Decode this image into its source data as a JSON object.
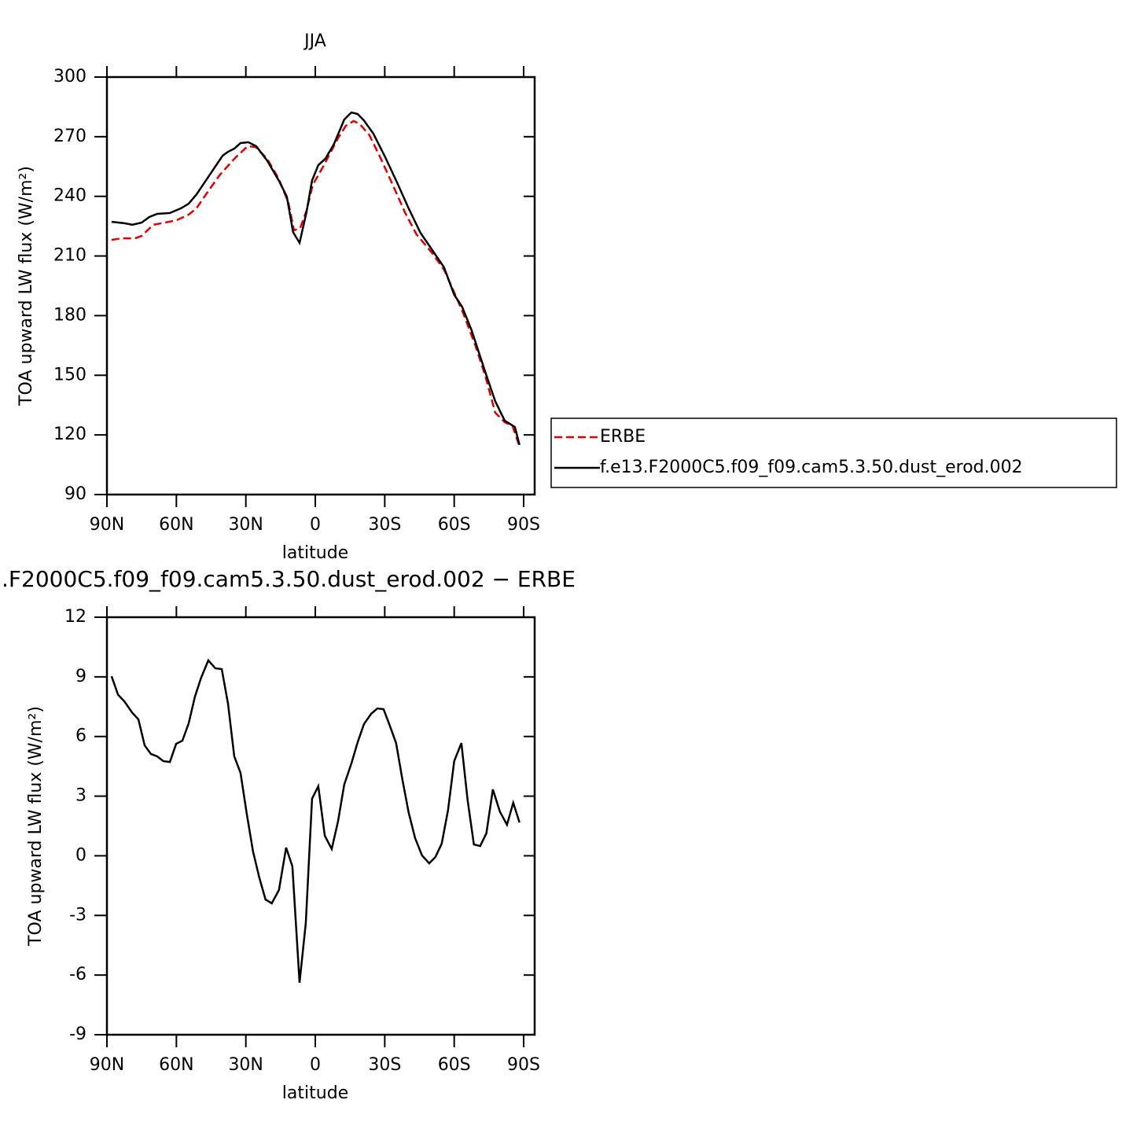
{
  "chart_data": [
    {
      "type": "line",
      "title": "JJA",
      "xlabel": "latitude",
      "ylabel": "TOA upward LW flux (W/m²)",
      "xlim": [
        90,
        -94.75
      ],
      "ylim": [
        90,
        300
      ],
      "xticks": [
        {
          "value": 90,
          "label": "90N"
        },
        {
          "value": 60,
          "label": "60N"
        },
        {
          "value": 30,
          "label": "30N"
        },
        0,
        {
          "value": -30,
          "label": "30S"
        },
        {
          "value": -60,
          "label": "60S"
        },
        {
          "value": -90,
          "label": "90S"
        }
      ],
      "yticks": [
        90,
        120,
        150,
        180,
        210,
        240,
        270,
        300
      ],
      "legend": "outside-right",
      "series": [
        {
          "name": "ERBE",
          "color": "#e00000",
          "linestyle": "dashed",
          "x": [
            88,
            83.6,
            77.8,
            75,
            70,
            64.9,
            59.8,
            54.7,
            51.3,
            46.2,
            41.1,
            34.3,
            29.2,
            25.8,
            20.8,
            15.7,
            11.6,
            9.2,
            6.5,
            3.8,
            1.1,
            -3,
            -6.4,
            -9.8,
            -13.2,
            -16.6,
            -19.3,
            -23.4,
            -28.5,
            -33.6,
            -38.7,
            -43.7,
            -50.5,
            -55.6,
            -60,
            -64.1,
            -69.2,
            -73.6,
            -77.7,
            -81.8,
            -85.2,
            -88.2
          ],
          "values": [
            218.1,
            218.9,
            218.9,
            220.1,
            225.7,
            226.8,
            228,
            230.8,
            234,
            242.7,
            251,
            259.7,
            265.2,
            264.8,
            258.9,
            248.6,
            236.7,
            222.9,
            224.1,
            232.8,
            245.8,
            254.1,
            261.6,
            269.2,
            275.5,
            277.9,
            276.3,
            270.7,
            258.5,
            245.4,
            232,
            220.9,
            211.4,
            203.1,
            191.7,
            180.6,
            164.8,
            149,
            131.2,
            126.4,
            124.4,
            114.2
          ]
        },
        {
          "name": "f.e13.F2000C5.f09_f09.cam5.3.50.dust_erod.002",
          "color": "#000000",
          "linestyle": "solid",
          "x": [
            88,
            82.5,
            79,
            75,
            71.7,
            68.3,
            62.8,
            58,
            54.7,
            51.3,
            46.2,
            40,
            37.7,
            35,
            32.3,
            28.9,
            25.5,
            20.8,
            15.7,
            12.3,
            9.6,
            6.8,
            3.8,
            1.4,
            -1.3,
            -4.4,
            -8.1,
            -12.5,
            -15.6,
            -18.3,
            -21,
            -25.1,
            -30.2,
            -35.3,
            -40.3,
            -45.4,
            -50.5,
            -55.6,
            -60,
            -63.4,
            -67.5,
            -73.6,
            -77.7,
            -81.8,
            -86.2,
            -88.2
          ],
          "values": [
            227.2,
            226.5,
            225.7,
            226.8,
            229.6,
            231.2,
            231.6,
            234,
            236.3,
            241,
            249.8,
            260.5,
            262.4,
            264,
            266.8,
            267.2,
            265.2,
            258,
            247.8,
            239.9,
            222,
            216.6,
            232,
            248,
            255.7,
            259,
            266.4,
            278.6,
            282.2,
            281.4,
            278.2,
            271.5,
            259.7,
            247,
            234,
            221.7,
            213,
            204.3,
            190.5,
            184.5,
            172.7,
            151,
            137,
            127.2,
            124,
            115
          ]
        }
      ]
    },
    {
      "type": "line",
      "title": ".F2000C5.f09_f09.cam5.3.50.dust_erod.002 − ERBE",
      "xlabel": "latitude",
      "ylabel": "TOA upward LW flux (W/m²)",
      "xlim": [
        90,
        -94.75
      ],
      "ylim": [
        -9,
        12
      ],
      "xticks": [
        {
          "value": 90,
          "label": "90N"
        },
        {
          "value": 60,
          "label": "60N"
        },
        {
          "value": 30,
          "label": "30N"
        },
        0,
        {
          "value": -30,
          "label": "30S"
        },
        {
          "value": -60,
          "label": "60S"
        },
        {
          "value": -90,
          "label": "90S"
        }
      ],
      "yticks": [
        -9,
        -6,
        -3,
        0,
        3,
        6,
        9,
        12
      ],
      "color": "#000000",
      "x": [
        88,
        85.2,
        82.5,
        79.1,
        76.4,
        73.7,
        71,
        68.3,
        65.6,
        62.8,
        60.1,
        57.4,
        54.7,
        52,
        49.3,
        46.2,
        43.2,
        40.4,
        37.7,
        35,
        32.3,
        29.6,
        26.9,
        24.2,
        21.5,
        18.8,
        15.7,
        12.6,
        9.9,
        6.8,
        4.1,
        1.4,
        -1.3,
        -4.1,
        -7.1,
        -9.8,
        -12.5,
        -15.6,
        -18.3,
        -21,
        -24.1,
        -26.8,
        -29.5,
        -32.2,
        -34.9,
        -37.6,
        -40.3,
        -43.1,
        -46.1,
        -49.2,
        -51.9,
        -54.6,
        -57.3,
        -60,
        -63.1,
        -65.8,
        -68.5,
        -71.2,
        -73.9,
        -76.7,
        -79.7,
        -82.8,
        -85.5,
        -88.2
      ],
      "values": [
        9.03,
        8.1,
        7.77,
        7.2,
        6.86,
        5.55,
        5.12,
        5.0,
        4.76,
        4.72,
        5.63,
        5.79,
        6.66,
        8.0,
        8.96,
        9.83,
        9.43,
        9.39,
        7.65,
        5.0,
        4.17,
        2.11,
        0.22,
        -1.09,
        -2.2,
        -2.39,
        -1.72,
        0.41,
        -0.53,
        -6.38,
        -3.38,
        2.87,
        3.5,
        1.01,
        0.34,
        1.72,
        3.58,
        4.65,
        5.71,
        6.62,
        7.14,
        7.41,
        7.37,
        6.54,
        5.67,
        3.85,
        2.19,
        0.89,
        0.02,
        -0.38,
        -0.06,
        0.61,
        2.27,
        4.76,
        5.67,
        2.79,
        0.57,
        0.49,
        1.13,
        3.34,
        2.23,
        1.56,
        2.67,
        1.68
      ]
    }
  ]
}
